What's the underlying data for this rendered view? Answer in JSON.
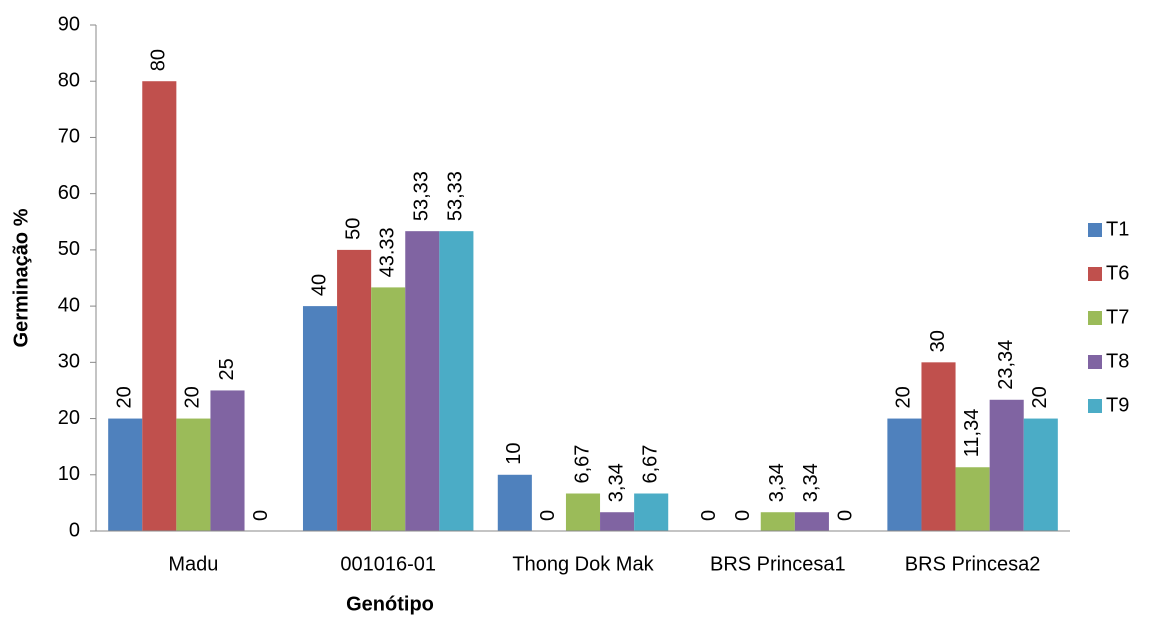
{
  "chart_data": {
    "type": "bar",
    "x_label": "Genótipo",
    "y_label": "Germinação %",
    "categories": [
      "Madu",
      "001016-01",
      "Thong Dok Mak",
      "BRS Princesa1",
      "BRS Princesa2"
    ],
    "series": [
      {
        "name": "T1",
        "color": "#4f81bd",
        "values": [
          20,
          40,
          10,
          0,
          20
        ]
      },
      {
        "name": "T6",
        "color": "#c0504d",
        "values": [
          80,
          50,
          0,
          0,
          30
        ]
      },
      {
        "name": "T7",
        "color": "#9bbb59",
        "values": [
          20,
          43.33,
          6.67,
          3.34,
          11.34
        ],
        "value_labels": [
          "20",
          "43.33",
          "6,67",
          "3,34",
          "11,34"
        ]
      },
      {
        "name": "T8",
        "color": "#8064a2",
        "values": [
          25,
          53.33,
          3.34,
          3.34,
          23.34
        ],
        "value_labels": [
          "25",
          "53,33",
          "3,34",
          "3,34",
          "23,34"
        ]
      },
      {
        "name": "T9",
        "color": "#4bacc6",
        "values": [
          0,
          53.33,
          6.67,
          0,
          20
        ],
        "value_labels": [
          "0",
          "53,33",
          "6,67",
          "0",
          "20"
        ]
      }
    ],
    "ylim": [
      0,
      90
    ],
    "yticks": [
      0,
      10,
      20,
      30,
      40,
      50,
      60,
      70,
      80,
      90
    ],
    "legend": "right"
  }
}
